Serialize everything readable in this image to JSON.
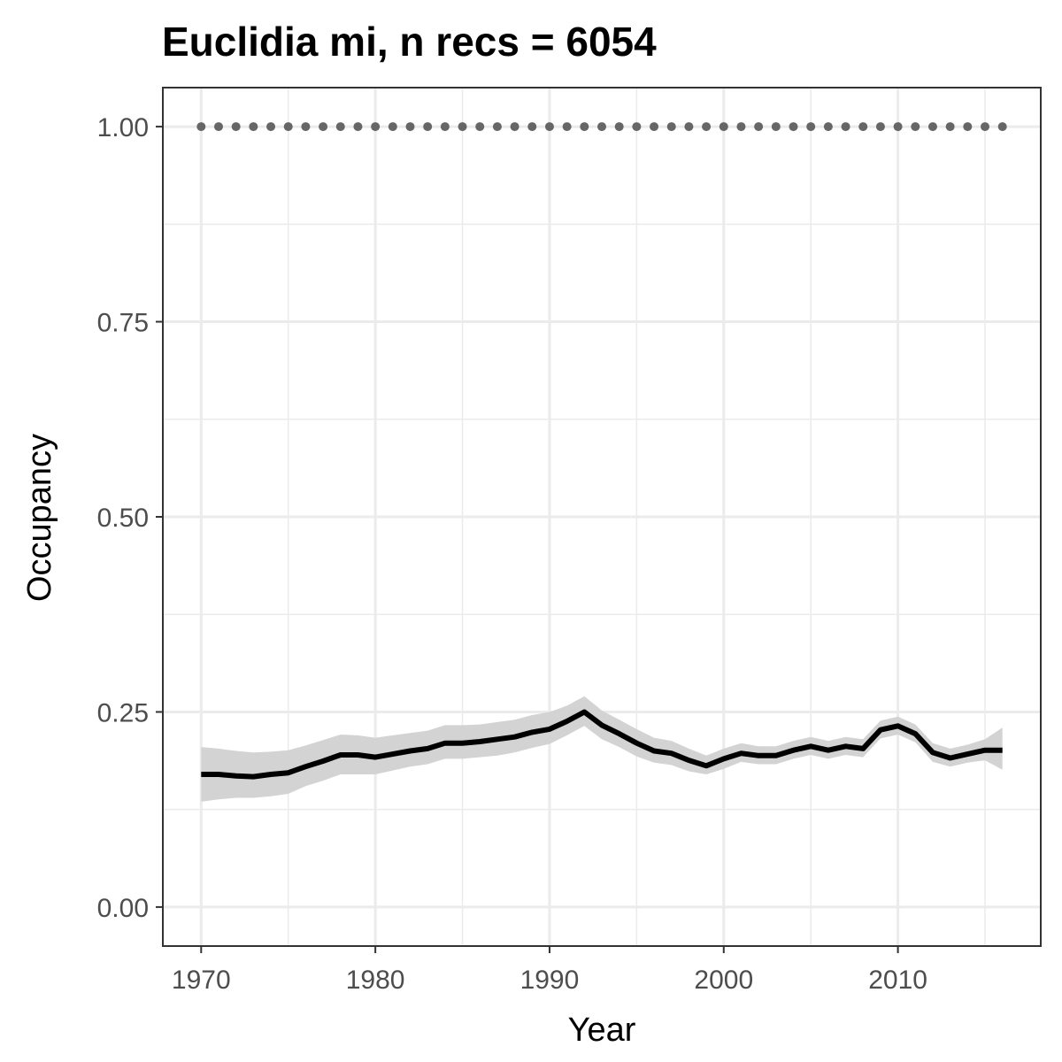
{
  "chart_data": {
    "type": "line",
    "title": "Euclidia mi, n recs = 6054",
    "xlabel": "Year",
    "ylabel": "Occupancy",
    "xlim": [
      1967.8,
      2018.2
    ],
    "ylim": [
      -0.05,
      1.05
    ],
    "x_ticks": [
      1970,
      1980,
      1990,
      2000,
      2010
    ],
    "x_tick_labels": [
      "1970",
      "1980",
      "1990",
      "2000",
      "2010"
    ],
    "y_ticks": [
      0,
      0.25,
      0.5,
      0.75,
      1.0
    ],
    "y_tick_labels": [
      "0.00",
      "0.25",
      "0.50",
      "0.75",
      "1.00"
    ],
    "grid": true,
    "colors": {
      "line": "#000000",
      "ribbon": "#d3d3d3",
      "points": "#666666",
      "grid": "#ebebeb",
      "border": "#333333"
    },
    "series": [
      {
        "x": [
          1970,
          1971,
          1972,
          1973,
          1974,
          1975,
          1976,
          1977,
          1978,
          1979,
          1980,
          1981,
          1982,
          1983,
          1984,
          1985,
          1986,
          1987,
          1988,
          1989,
          1990,
          1991,
          1992,
          1993,
          1994,
          1995,
          1996,
          1997,
          1998,
          1999,
          2000,
          2001,
          2002,
          2003,
          2004,
          2005,
          2006,
          2007,
          2008,
          2009,
          2010,
          2011,
          2012,
          2013,
          2014,
          2015,
          2016
        ],
        "mean": [
          0.17,
          0.17,
          0.168,
          0.167,
          0.17,
          0.172,
          0.18,
          0.187,
          0.195,
          0.195,
          0.192,
          0.196,
          0.2,
          0.203,
          0.21,
          0.21,
          0.212,
          0.215,
          0.218,
          0.224,
          0.228,
          0.238,
          0.25,
          0.233,
          0.222,
          0.21,
          0.2,
          0.197,
          0.188,
          0.181,
          0.19,
          0.197,
          0.194,
          0.194,
          0.201,
          0.206,
          0.201,
          0.206,
          0.203,
          0.227,
          0.232,
          0.222,
          0.198,
          0.191,
          0.196,
          0.201,
          0.201
        ],
        "lower": [
          0.135,
          0.138,
          0.14,
          0.14,
          0.142,
          0.145,
          0.155,
          0.162,
          0.17,
          0.17,
          0.17,
          0.175,
          0.18,
          0.183,
          0.19,
          0.19,
          0.192,
          0.194,
          0.198,
          0.204,
          0.209,
          0.22,
          0.232,
          0.215,
          0.205,
          0.193,
          0.185,
          0.182,
          0.174,
          0.17,
          0.177,
          0.186,
          0.183,
          0.183,
          0.19,
          0.195,
          0.19,
          0.195,
          0.192,
          0.216,
          0.221,
          0.211,
          0.186,
          0.18,
          0.185,
          0.188,
          0.176
        ],
        "upper": [
          0.205,
          0.203,
          0.2,
          0.198,
          0.199,
          0.201,
          0.207,
          0.214,
          0.221,
          0.22,
          0.217,
          0.22,
          0.223,
          0.226,
          0.233,
          0.233,
          0.234,
          0.237,
          0.24,
          0.246,
          0.25,
          0.258,
          0.27,
          0.252,
          0.24,
          0.228,
          0.217,
          0.213,
          0.203,
          0.194,
          0.203,
          0.21,
          0.206,
          0.206,
          0.213,
          0.218,
          0.213,
          0.218,
          0.215,
          0.239,
          0.244,
          0.234,
          0.21,
          0.203,
          0.208,
          0.215,
          0.23
        ]
      },
      {
        "x": [
          1970,
          1971,
          1972,
          1973,
          1974,
          1975,
          1976,
          1977,
          1978,
          1979,
          1980,
          1981,
          1982,
          1983,
          1984,
          1985,
          1986,
          1987,
          1988,
          1989,
          1990,
          1991,
          1992,
          1993,
          1994,
          1995,
          1996,
          1997,
          1998,
          1999,
          2000,
          2001,
          2002,
          2003,
          2004,
          2005,
          2006,
          2007,
          2008,
          2009,
          2010,
          2011,
          2012,
          2013,
          2014,
          2015,
          2016
        ],
        "y": [
          1,
          1,
          1,
          1,
          1,
          1,
          1,
          1,
          1,
          1,
          1,
          1,
          1,
          1,
          1,
          1,
          1,
          1,
          1,
          1,
          1,
          1,
          1,
          1,
          1,
          1,
          1,
          1,
          1,
          1,
          1,
          1,
          1,
          1,
          1,
          1,
          1,
          1,
          1,
          1,
          1,
          1,
          1,
          1,
          1,
          1,
          1
        ]
      }
    ]
  }
}
